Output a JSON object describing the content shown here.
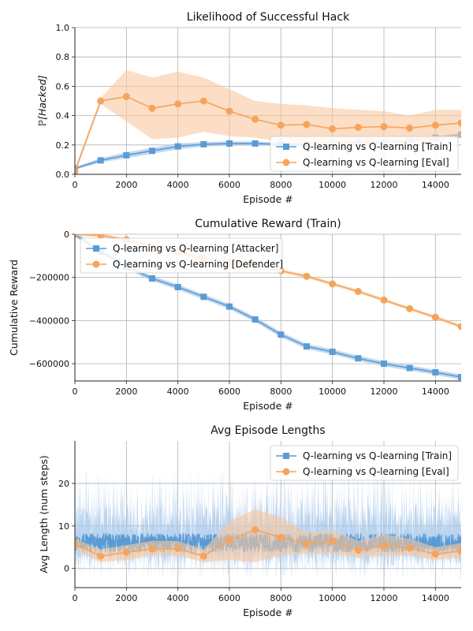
{
  "colors": {
    "train": "#5b9bd5",
    "eval": "#f7a35c",
    "train_band": "#a9c8ea",
    "eval_band": "#f9c89e",
    "grid": "#b0b0b0"
  },
  "chart_data": [
    {
      "type": "line",
      "title": "Likelihood of Successful Hack",
      "xlabel": "Episode #",
      "ylabel": "ℙ[Hacked]",
      "xlim": [
        0,
        15000
      ],
      "ylim": [
        0,
        1.0
      ],
      "xticks": [
        "0",
        "2000",
        "4000",
        "6000",
        "8000",
        "10000",
        "12000",
        "14000"
      ],
      "yticks": [
        "0.0",
        "0.2",
        "0.4",
        "0.6",
        "0.8",
        "1.0"
      ],
      "grid": true,
      "legend_position": "lower-right",
      "x": [
        0,
        1000,
        2000,
        3000,
        4000,
        5000,
        6000,
        7000,
        8000,
        9000,
        10000,
        11000,
        12000,
        13000,
        14000,
        15000
      ],
      "series": [
        {
          "name": "Q-learning vs Q-learning [Train]",
          "color": "train",
          "marker": "square",
          "values": [
            0.04,
            0.095,
            0.13,
            0.16,
            0.19,
            0.205,
            0.21,
            0.21,
            0.205,
            0.205,
            0.21,
            0.215,
            0.22,
            0.23,
            0.25,
            0.27
          ],
          "band_low": [
            0.03,
            0.08,
            0.11,
            0.14,
            0.17,
            0.19,
            0.195,
            0.195,
            0.195,
            0.195,
            0.2,
            0.205,
            0.21,
            0.22,
            0.24,
            0.26
          ],
          "band_high": [
            0.05,
            0.11,
            0.15,
            0.18,
            0.21,
            0.22,
            0.225,
            0.225,
            0.215,
            0.215,
            0.22,
            0.225,
            0.23,
            0.24,
            0.26,
            0.28
          ]
        },
        {
          "name": "Q-learning vs Q-learning [Eval]",
          "color": "eval",
          "marker": "circle",
          "values": [
            0.02,
            0.5,
            0.53,
            0.45,
            0.48,
            0.5,
            0.43,
            0.375,
            0.335,
            0.34,
            0.31,
            0.32,
            0.325,
            0.315,
            0.335,
            0.35
          ],
          "band_low": [
            0.0,
            0.48,
            0.36,
            0.24,
            0.25,
            0.29,
            0.26,
            0.25,
            0.22,
            0.2,
            0.19,
            0.2,
            0.21,
            0.2,
            0.22,
            0.25
          ],
          "band_high": [
            0.04,
            0.52,
            0.71,
            0.66,
            0.7,
            0.66,
            0.58,
            0.5,
            0.48,
            0.47,
            0.45,
            0.44,
            0.43,
            0.4,
            0.44,
            0.44
          ]
        }
      ]
    },
    {
      "type": "line",
      "title": "Cumulative Reward (Train)",
      "xlabel": "Episode #",
      "ylabel": "Cumulative Reward",
      "xlim": [
        0,
        15000
      ],
      "ylim": [
        -680000,
        0
      ],
      "yticks_values": [
        0,
        -200000,
        -400000,
        -600000
      ],
      "xticks": [
        "0",
        "2000",
        "4000",
        "6000",
        "8000",
        "10000",
        "12000",
        "14000"
      ],
      "yticks": [
        "0",
        "−200000",
        "−400000",
        "−600000"
      ],
      "grid": true,
      "legend_position": "top-left",
      "x": [
        0,
        1000,
        2000,
        3000,
        4000,
        5000,
        6000,
        7000,
        8000,
        9000,
        10000,
        11000,
        12000,
        13000,
        14000,
        15000
      ],
      "series": [
        {
          "name": "Q-learning vs Q-learning [Attacker]",
          "color": "train",
          "marker": "square",
          "values": [
            0,
            -80000,
            -150000,
            -205000,
            -245000,
            -290000,
            -335000,
            -395000,
            -465000,
            -520000,
            -545000,
            -575000,
            -600000,
            -620000,
            -640000,
            -662000
          ],
          "band": 12000
        },
        {
          "name": "Q-learning vs Q-learning [Defender]",
          "color": "eval",
          "marker": "circle",
          "values": [
            0,
            -5000,
            -25000,
            -55000,
            -85000,
            -110000,
            -130000,
            -150000,
            -170000,
            -195000,
            -230000,
            -265000,
            -305000,
            -345000,
            -385000,
            -428000
          ],
          "band": 8000
        }
      ]
    },
    {
      "type": "line",
      "title": "Avg Episode Lengths",
      "xlabel": "Episode #",
      "ylabel": "Avg Length (num steps)",
      "xlim": [
        0,
        15000
      ],
      "ylim": [
        -4.5,
        30
      ],
      "yticks_values": [
        0,
        10,
        20
      ],
      "xticks": [
        "0",
        "2000",
        "4000",
        "6000",
        "8000",
        "10000",
        "12000",
        "14000"
      ],
      "yticks": [
        "0",
        "10",
        "20"
      ],
      "grid": true,
      "legend_position": "top-right",
      "x": [
        0,
        1000,
        2000,
        3000,
        4000,
        5000,
        6000,
        7000,
        8000,
        9000,
        10000,
        11000,
        12000,
        13000,
        14000,
        15000
      ],
      "series": [
        {
          "name": "Q-learning vs Q-learning [Train]",
          "color": "train",
          "marker": "square",
          "noisy": true,
          "mean": 6,
          "spread": 4.5,
          "band_low": -3,
          "band_high": 24
        },
        {
          "name": "Q-learning vs Q-learning [Eval]",
          "color": "eval",
          "marker": "circle",
          "values": [
            5.8,
            2.9,
            3.8,
            4.6,
            4.7,
            2.9,
            6.7,
            9.1,
            7.3,
            5.8,
            6.5,
            4.3,
            5.4,
            4.8,
            3.4,
            4.1
          ],
          "band_low": [
            4.5,
            1.5,
            2.0,
            3.0,
            3.0,
            1.5,
            2.0,
            1.5,
            3.0,
            3.5,
            3.5,
            2.5,
            3.0,
            3.0,
            2.0,
            2.5
          ],
          "band_high": [
            7.0,
            4.5,
            5.5,
            6.5,
            6.5,
            4.5,
            11.0,
            14.0,
            12.0,
            8.5,
            9.0,
            6.5,
            8.0,
            7.0,
            5.0,
            6.0
          ]
        }
      ]
    }
  ]
}
